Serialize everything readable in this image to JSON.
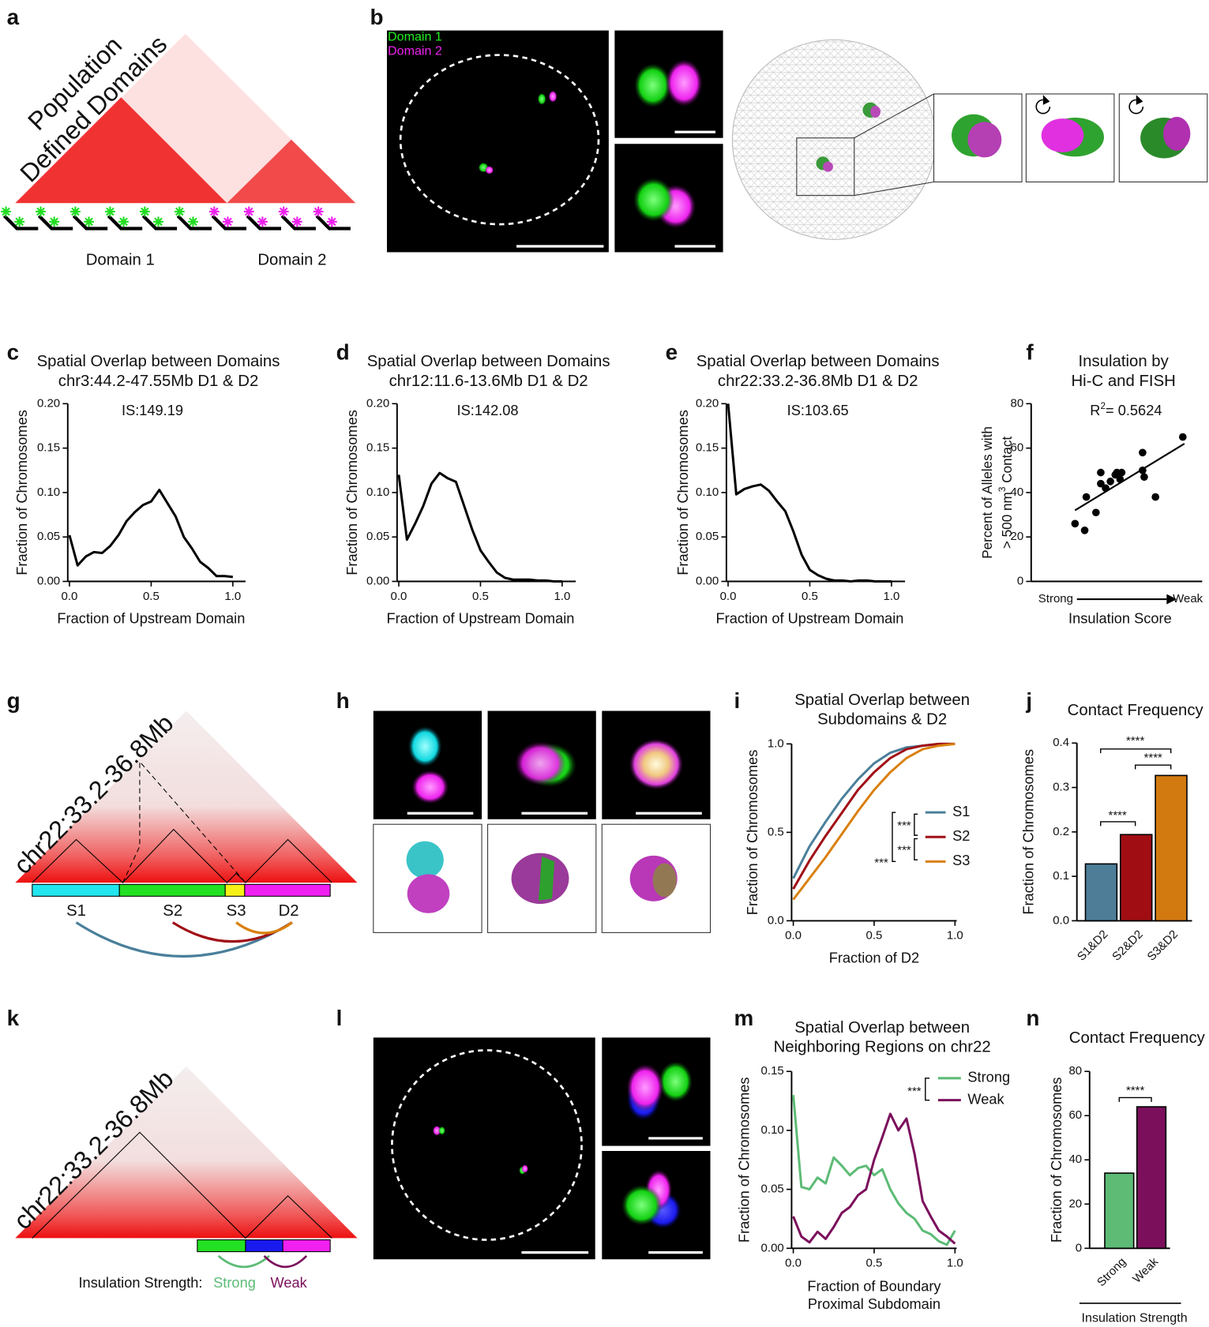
{
  "figure": {
    "panel_labels": [
      "a",
      "b",
      "c",
      "d",
      "e",
      "f",
      "g",
      "h",
      "i",
      "j",
      "k",
      "l",
      "m",
      "n"
    ],
    "a": {
      "title": [
        "Population",
        "Defined Domains"
      ],
      "domains": [
        "Domain 1",
        "Domain 2"
      ]
    },
    "b": {
      "legend": [
        "Domain 1",
        "Domain 2"
      ]
    },
    "g": {
      "region": "chr22:33.2-36.8Mb",
      "segments": [
        "S1",
        "S2",
        "S3",
        "D2"
      ]
    },
    "k": {
      "region": "chr22:33.2-36.8Mb",
      "legend_title": "Insulation Strength:",
      "legend": [
        "Strong",
        "Weak"
      ]
    }
  },
  "chart_data": [
    {
      "type": "line",
      "title": [
        "Spatial Overlap between Domains",
        "chr3:44.2-47.55Mb D1 & D2"
      ],
      "annotation": "IS:149.19",
      "xlabel": "Fraction of Upstream Domain",
      "ylabel": "Fraction of Chromosomes",
      "x": [
        0,
        0.05,
        0.1,
        0.15,
        0.2,
        0.25,
        0.3,
        0.35,
        0.4,
        0.45,
        0.5,
        0.55,
        0.6,
        0.65,
        0.7,
        0.75,
        0.8,
        0.85,
        0.9,
        0.95,
        1
      ],
      "values": [
        0.052,
        0.018,
        0.028,
        0.033,
        0.032,
        0.04,
        0.052,
        0.068,
        0.078,
        0.086,
        0.09,
        0.103,
        0.088,
        0.073,
        0.05,
        0.037,
        0.022,
        0.015,
        0.006,
        0.006,
        0.005
      ],
      "color": "#000000",
      "xlim": [
        0,
        1
      ],
      "ylim": [
        0,
        0.2
      ],
      "xticks": [
        {
          "value": 0,
          "label": "0.0"
        },
        {
          "value": 0.5,
          "label": "0.5"
        },
        {
          "value": 1,
          "label": "1.0"
        }
      ],
      "yticks": [
        {
          "value": 0,
          "label": "0.00"
        },
        0.05,
        {
          "value": 0.1,
          "label": "0.10"
        },
        0.15,
        {
          "value": 0.2,
          "label": "0.20"
        }
      ]
    },
    {
      "type": "line",
      "title": [
        "Spatial Overlap between Domains",
        "chr12:11.6-13.6Mb D1 & D2"
      ],
      "annotation": "IS:142.08",
      "xlabel": "Fraction of Upstream Domain",
      "ylabel": "Fraction of Chromosomes",
      "x": [
        0,
        0.05,
        0.1,
        0.15,
        0.2,
        0.25,
        0.3,
        0.35,
        0.4,
        0.45,
        0.5,
        0.55,
        0.6,
        0.65,
        0.7,
        0.75,
        0.8,
        0.85,
        0.9,
        0.95,
        1
      ],
      "values": [
        0.12,
        0.047,
        0.065,
        0.085,
        0.11,
        0.122,
        0.116,
        0.112,
        0.085,
        0.058,
        0.035,
        0.022,
        0.01,
        0.004,
        0.002,
        0.002,
        0.002,
        0.001,
        0.001,
        0,
        0
      ],
      "color": "#000000",
      "xlim": [
        0,
        1
      ],
      "ylim": [
        0,
        0.2
      ],
      "xticks": [
        {
          "value": 0,
          "label": "0.0"
        },
        {
          "value": 0.5,
          "label": "0.5"
        },
        {
          "value": 1,
          "label": "1.0"
        }
      ],
      "yticks": [
        {
          "value": 0,
          "label": "0.00"
        },
        0.05,
        {
          "value": 0.1,
          "label": "0.10"
        },
        0.15,
        {
          "value": 0.2,
          "label": "0.20"
        }
      ]
    },
    {
      "type": "line",
      "title": [
        "Spatial Overlap between Domains",
        "chr22:33.2-36.8Mb D1 & D2"
      ],
      "annotation": "IS:103.65",
      "xlabel": "Fraction of Upstream Domain",
      "ylabel": "Fraction of Chromosomes",
      "x": [
        0,
        0.05,
        0.1,
        0.15,
        0.2,
        0.25,
        0.3,
        0.35,
        0.4,
        0.45,
        0.5,
        0.55,
        0.6,
        0.65,
        0.7,
        0.75,
        0.8,
        0.85,
        0.9,
        0.95,
        1
      ],
      "values": [
        0.2,
        0.098,
        0.104,
        0.107,
        0.109,
        0.102,
        0.09,
        0.079,
        0.056,
        0.03,
        0.013,
        0.007,
        0.003,
        0.001,
        0.001,
        0,
        0.001,
        0.001,
        0,
        0,
        0
      ],
      "color": "#000000",
      "xlim": [
        0,
        1
      ],
      "ylim": [
        0,
        0.2
      ],
      "xticks": [
        {
          "value": 0,
          "label": "0.0"
        },
        {
          "value": 0.5,
          "label": "0.5"
        },
        {
          "value": 1,
          "label": "1.0"
        }
      ],
      "yticks": [
        {
          "value": 0,
          "label": "0.00"
        },
        0.05,
        {
          "value": 0.1,
          "label": "0.10"
        },
        0.15,
        {
          "value": 0.2,
          "label": "0.20"
        }
      ]
    },
    {
      "type": "scatter",
      "title": [
        "Insulation by",
        "Hi-C and FISH"
      ],
      "annotation": [
        "R",
        "2",
        "= 0.5624"
      ],
      "xlabel": "Insulation Score",
      "x_end_labels": [
        "Strong",
        "Weak"
      ],
      "ylabel": [
        [
          "Percent of Alleles with"
        ],
        [
          "> 500 nm",
          "3",
          " Contact"
        ]
      ],
      "x": [
        0.22,
        0.28,
        0.29,
        0.35,
        0.38,
        0.38,
        0.41,
        0.44,
        0.47,
        0.48,
        0.5,
        0.51,
        0.64,
        0.64,
        0.65,
        0.72,
        0.89
      ],
      "y": [
        26,
        23,
        38,
        31,
        44,
        49,
        42,
        45,
        48,
        49,
        46,
        49,
        58,
        50,
        47,
        38,
        65
      ],
      "color": "#000000",
      "trendline": {
        "x": [
          0.22,
          0.9
        ],
        "y": [
          32,
          62
        ]
      },
      "xlim": [
        0,
        1
      ],
      "ylim": [
        0,
        80
      ],
      "yticks": [
        0,
        20,
        40,
        60,
        80
      ]
    },
    {
      "type": "line",
      "title": [
        "Spatial Overlap between",
        "Subdomains & D2"
      ],
      "xlabel": "Fraction of D2",
      "ylabel": "Fraction of Chromosomes",
      "x": [
        0,
        0.1,
        0.2,
        0.3,
        0.4,
        0.5,
        0.6,
        0.7,
        0.8,
        0.9,
        1
      ],
      "series": [
        {
          "name": "S1",
          "color": "#4a7f9a",
          "values": [
            0.24,
            0.42,
            0.56,
            0.69,
            0.8,
            0.89,
            0.95,
            0.98,
            0.99,
            1,
            1
          ]
        },
        {
          "name": "S2",
          "color": "#a00f16",
          "values": [
            0.18,
            0.34,
            0.48,
            0.61,
            0.74,
            0.84,
            0.92,
            0.97,
            0.99,
            1,
            1
          ]
        },
        {
          "name": "S3",
          "color": "#d9800e",
          "values": [
            0.12,
            0.24,
            0.36,
            0.49,
            0.62,
            0.74,
            0.84,
            0.92,
            0.97,
            0.99,
            1
          ]
        }
      ],
      "significance": [
        "***",
        "***",
        "***"
      ],
      "xlim": [
        0,
        1
      ],
      "ylim": [
        0,
        1
      ],
      "xticks": [
        {
          "value": 0,
          "label": "0.0"
        },
        0.5,
        {
          "value": 1,
          "label": "1.0"
        }
      ],
      "yticks": [
        {
          "value": 0,
          "label": "0.0"
        },
        0.5,
        {
          "value": 1,
          "label": "1.0"
        }
      ]
    },
    {
      "type": "bar",
      "title": [
        "Contact Frequency"
      ],
      "ylabel": "Fraction of Chromosomes",
      "categories": [
        "S1&D2",
        "S2&D2",
        "S3&D2"
      ],
      "values": [
        0.128,
        0.194,
        0.327
      ],
      "colors": [
        "#4d7d97",
        "#a00d12",
        "#d27a10"
      ],
      "significance": [
        "****",
        "****",
        "****"
      ],
      "ylim": [
        0,
        0.4
      ],
      "yticks": [
        {
          "value": 0,
          "label": "0.0"
        },
        0.1,
        0.2,
        0.3,
        0.4
      ]
    },
    {
      "type": "line",
      "title": [
        "Spatial Overlap between",
        "Neighboring Regions on chr22"
      ],
      "xlabel": [
        "Fraction of Boundary",
        "Proximal Subdomain"
      ],
      "ylabel": "Fraction of Chromosomes",
      "x": [
        0,
        0.05,
        0.1,
        0.15,
        0.2,
        0.25,
        0.3,
        0.35,
        0.4,
        0.45,
        0.5,
        0.55,
        0.6,
        0.65,
        0.7,
        0.75,
        0.8,
        0.85,
        0.9,
        0.95,
        1
      ],
      "series": [
        {
          "name": "Strong",
          "color": "#5dbb76",
          "values": [
            0.13,
            0.052,
            0.05,
            0.06,
            0.055,
            0.077,
            0.07,
            0.062,
            0.068,
            0.07,
            0.062,
            0.067,
            0.05,
            0.038,
            0.03,
            0.025,
            0.015,
            0.012,
            0.006,
            0.003,
            0.015
          ]
        },
        {
          "name": "Weak",
          "color": "#7b0f5c",
          "values": [
            0.027,
            0.01,
            0.005,
            0.014,
            0.008,
            0.018,
            0.03,
            0.035,
            0.045,
            0.05,
            0.075,
            0.094,
            0.114,
            0.1,
            0.11,
            0.08,
            0.04,
            0.027,
            0.015,
            0.01,
            0.004
          ]
        }
      ],
      "significance": [
        "***"
      ],
      "xlim": [
        0,
        1
      ],
      "ylim": [
        0,
        0.15
      ],
      "xticks": [
        {
          "value": 0,
          "label": "0.0"
        },
        0.5,
        {
          "value": 1,
          "label": "1.0"
        }
      ],
      "yticks": [
        {
          "value": 0,
          "label": "0.00"
        },
        0.05,
        {
          "value": 0.1,
          "label": "0.10"
        },
        0.15
      ]
    },
    {
      "type": "bar",
      "title": [
        "Contact Frequency"
      ],
      "ylabel": "Fraction of Chromosomes",
      "xlabel": "Insulation Strength",
      "categories": [
        "Strong",
        "Weak"
      ],
      "values": [
        34,
        64
      ],
      "colors": [
        "#5dbb76",
        "#7b0f5c"
      ],
      "significance": [
        "****"
      ],
      "ylim": [
        0,
        80
      ],
      "yticks": [
        0,
        20,
        40,
        60,
        80
      ]
    }
  ]
}
